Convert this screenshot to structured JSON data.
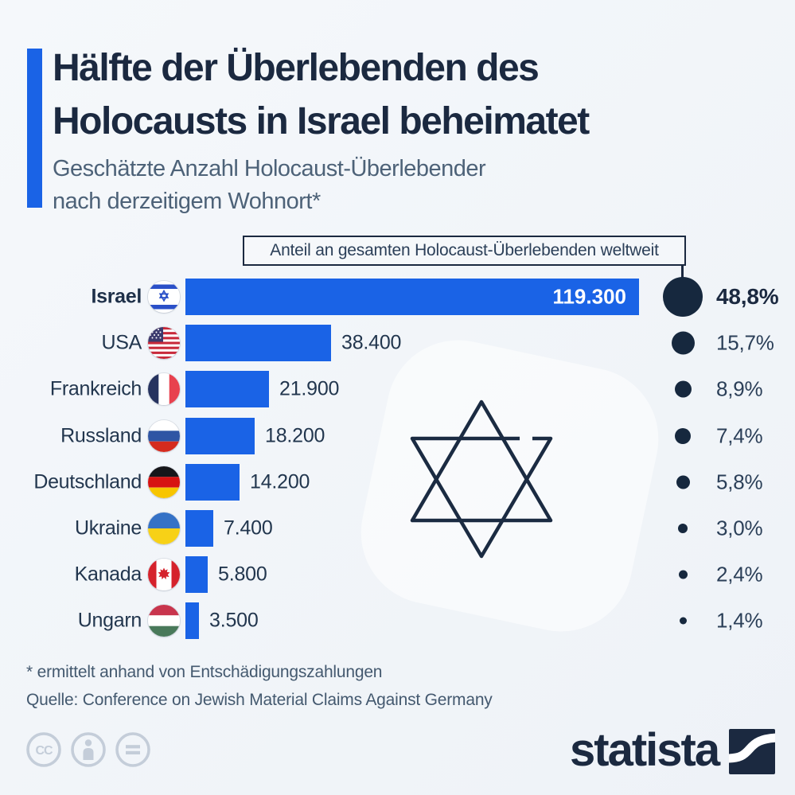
{
  "colors": {
    "background": "#f0f4f8",
    "accent_blue": "#1a63e6",
    "navy": "#1b2940",
    "text_dark": "#22364e",
    "text_slate": "#4d6278",
    "cc_gray": "#c4cdd9",
    "bar_value_inside": "#ffffff"
  },
  "header": {
    "title_lines": [
      "Hälfte der Überlebenden des",
      "Holocausts in Israel beheimatet"
    ],
    "subtitle_lines": [
      "Geschätzte Anzahl Holocaust-Überlebender",
      "nach derzeitigem Wohnort*"
    ]
  },
  "chart_data": {
    "type": "bar",
    "orientation": "horizontal",
    "title": "Hälfte der Überlebenden des Holocausts in Israel beheimatet",
    "subtitle": "Geschätzte Anzahl Holocaust-Überlebender nach derzeitigem Wohnort*",
    "annotation": "Anteil an gesamten Holocaust-Überlebenden weltweit",
    "categories": [
      "Israel",
      "USA",
      "Frankreich",
      "Russland",
      "Deutschland",
      "Ukraine",
      "Kanada",
      "Ungarn"
    ],
    "values": [
      119300,
      38400,
      21900,
      18200,
      14200,
      7400,
      5800,
      3500
    ],
    "value_labels": [
      "119.300",
      "38.400",
      "21.900",
      "18.200",
      "14.200",
      "7.400",
      "5.800",
      "3.500"
    ],
    "share_values": [
      48.8,
      15.7,
      8.9,
      7.4,
      5.8,
      3.0,
      2.4,
      1.4
    ],
    "share_labels": [
      "48,8%",
      "15,7%",
      "8,9%",
      "7,4%",
      "5,8%",
      "3,0%",
      "2,4%",
      "1,4%"
    ],
    "flags": [
      "israel",
      "usa",
      "frankreich",
      "russland",
      "deutschland",
      "ukraine",
      "kanada",
      "ungarn"
    ],
    "xlim": [
      0,
      119300
    ],
    "highlight_index": 0,
    "grid": false,
    "legend": false
  },
  "footnotes": {
    "asterisk": "* ermittelt anhand von Entschädigungszahlungen",
    "source": "Quelle: Conference on Jewish Material Claims Against Germany"
  },
  "branding": {
    "logo_text": "statista",
    "license_icons": [
      "cc",
      "by",
      "nd"
    ]
  }
}
